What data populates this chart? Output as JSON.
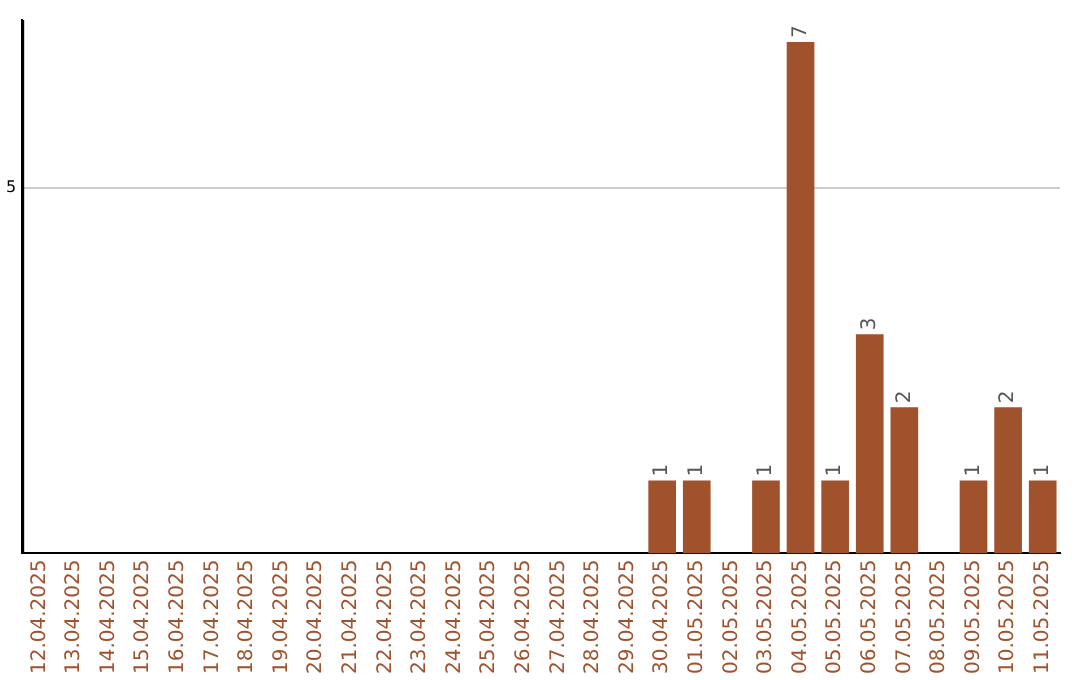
{
  "chart_data": {
    "type": "bar",
    "categories": [
      "12.04.2025",
      "13.04.2025",
      "14.04.2025",
      "15.04.2025",
      "16.04.2025",
      "17.04.2025",
      "18.04.2025",
      "19.04.2025",
      "20.04.2025",
      "21.04.2025",
      "22.04.2025",
      "23.04.2025",
      "24.04.2025",
      "25.04.2025",
      "26.04.2025",
      "27.04.2025",
      "28.04.2025",
      "29.04.2025",
      "30.04.2025",
      "01.05.2025",
      "02.05.2025",
      "03.05.2025",
      "04.05.2025",
      "05.05.2025",
      "06.05.2025",
      "07.05.2025",
      "08.05.2025",
      "09.05.2025",
      "10.05.2025",
      "11.05.2025"
    ],
    "values": [
      null,
      null,
      null,
      null,
      null,
      null,
      null,
      null,
      null,
      null,
      null,
      null,
      null,
      null,
      null,
      null,
      null,
      null,
      1,
      1,
      null,
      1,
      7,
      1,
      3,
      2,
      null,
      1,
      2,
      1
    ],
    "data_labels": true,
    "color": "#a0522d",
    "ylim": [
      0,
      7.3
    ],
    "yticks": [
      5
    ],
    "grid": "y"
  }
}
